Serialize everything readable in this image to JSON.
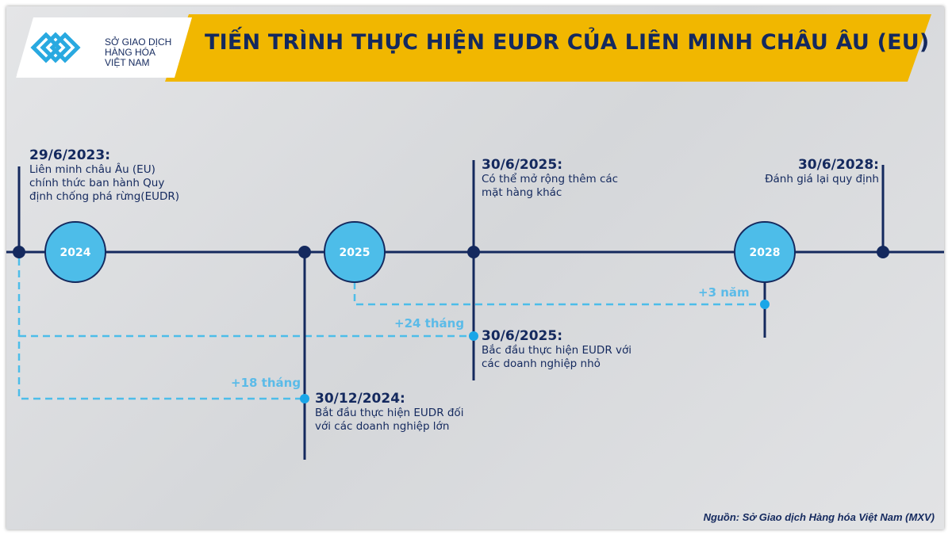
{
  "header": {
    "title": "TIẾN TRÌNH THỰC HIỆN EUDR CỦA LIÊN MINH CHÂU ÂU (EU)",
    "logo_lines": [
      "SỞ GIAO DỊCH",
      "HÀNG HÓA",
      "VIỆT NAM"
    ]
  },
  "years": [
    "2024",
    "2025",
    "2028"
  ],
  "events": [
    {
      "date": "29/6/2023:",
      "desc": [
        "Liên minh châu Âu (EU)",
        "chính thức ban hành Quy",
        "định chống phá rừng(EUDR)"
      ]
    },
    {
      "date": "30/6/2025:",
      "desc": [
        "Có thể mở rộng thêm các",
        "mặt hàng khác"
      ]
    },
    {
      "date": "30/6/2028:",
      "desc": [
        "Đánh giá lại quy định"
      ]
    },
    {
      "date": "30/6/2025:",
      "desc": [
        "Bắc đầu thực hiện EUDR với",
        "các doanh nghiệp nhỏ"
      ]
    },
    {
      "date": "30/12/2024:",
      "desc": [
        "Bắt đầu thực hiện EUDR đối",
        "với các doanh nghiệp lớn"
      ]
    }
  ],
  "durations": [
    "+3 năm",
    "+24 tháng",
    "+18 tháng"
  ],
  "source": "Nguồn: Sở Giao dịch Hàng hóa Việt Nam (MXV)",
  "colors": {
    "navy": "#14295e",
    "accent": "#f1b700",
    "light_blue": "#4dbde9"
  }
}
